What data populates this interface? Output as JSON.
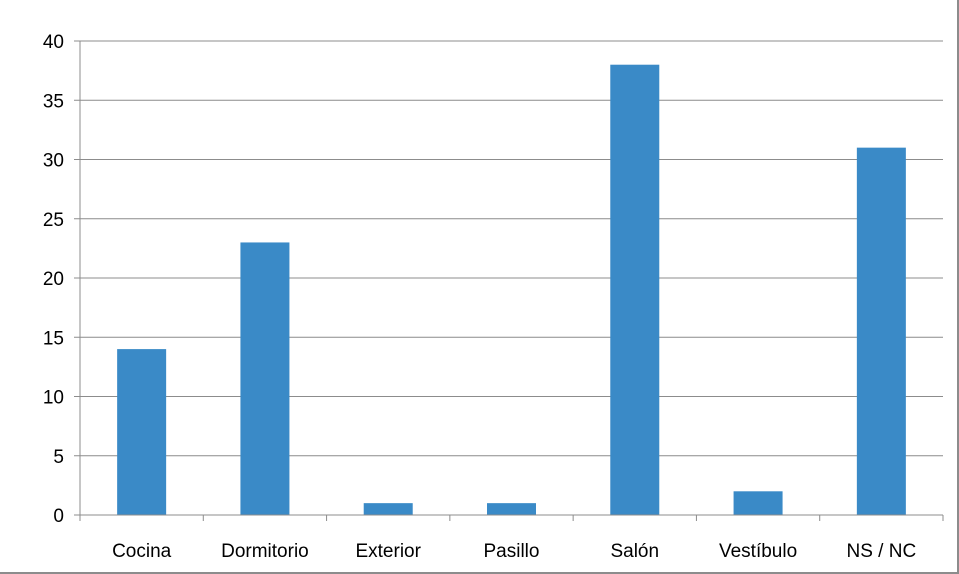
{
  "chart_data": {
    "type": "bar",
    "title": "",
    "xlabel": "",
    "ylabel": "",
    "categories": [
      "Cocina",
      "Dormitorio",
      "Exterior",
      "Pasillo",
      "Salón",
      "Vestíbulo",
      "NS / NC"
    ],
    "values": [
      14,
      23,
      1,
      1,
      38,
      2,
      31
    ],
    "ylim": [
      0,
      40
    ],
    "yticks": [
      "0",
      "5",
      "10",
      "15",
      "20",
      "25",
      "30",
      "35",
      "40"
    ],
    "grid": "horizontal",
    "legend": "none",
    "bar_color": "#3a8ac7",
    "grid_color": "#8c8c8c"
  }
}
